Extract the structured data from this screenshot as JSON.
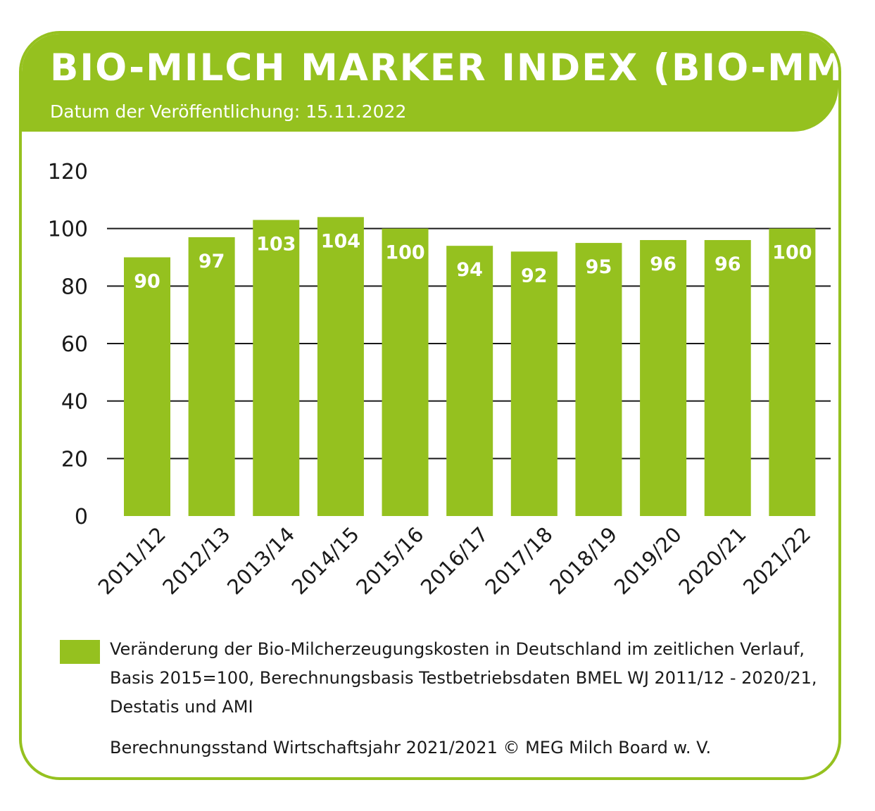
{
  "header": {
    "title": "BIO-MILCH MARKER INDEX (BIO-MMI)",
    "subtitle": "Datum der Veröffentlichung: 15.11.2022"
  },
  "colors": {
    "accent": "#95c11f",
    "grid": "#1a1a1a",
    "text": "#1a1a1a"
  },
  "chart_data": {
    "type": "bar",
    "categories": [
      "2011/12",
      "2012/13",
      "2013/14",
      "2014/15",
      "2015/16",
      "2016/17",
      "2017/18",
      "2018/19",
      "2019/20",
      "2020/21",
      "2021/22"
    ],
    "values": [
      90,
      97,
      103,
      104,
      100,
      94,
      92,
      95,
      96,
      96,
      100
    ],
    "bar_labels": [
      "90",
      "97",
      "103",
      "104",
      "100",
      "94",
      "92",
      "95",
      "96",
      "96",
      "100"
    ],
    "yticks": [
      "0",
      "20",
      "40",
      "60",
      "80",
      "100",
      "120"
    ],
    "ylim": [
      0,
      120
    ],
    "grid": true,
    "xlabel": "",
    "ylabel": ""
  },
  "legend": {
    "text": "Veränderung der Bio-Milcherzeugungskosten in Deutschland im zeitlichen Verlauf, Basis 2015=100, Berechnungsbasis Testbetriebsdaten BMEL WJ 2011/12 - 2020/21, Destatis und AMI"
  },
  "footer": {
    "source": "Berechnungsstand Wirtschaftsjahr 2021/2021 © MEG Milch Board w. V."
  }
}
